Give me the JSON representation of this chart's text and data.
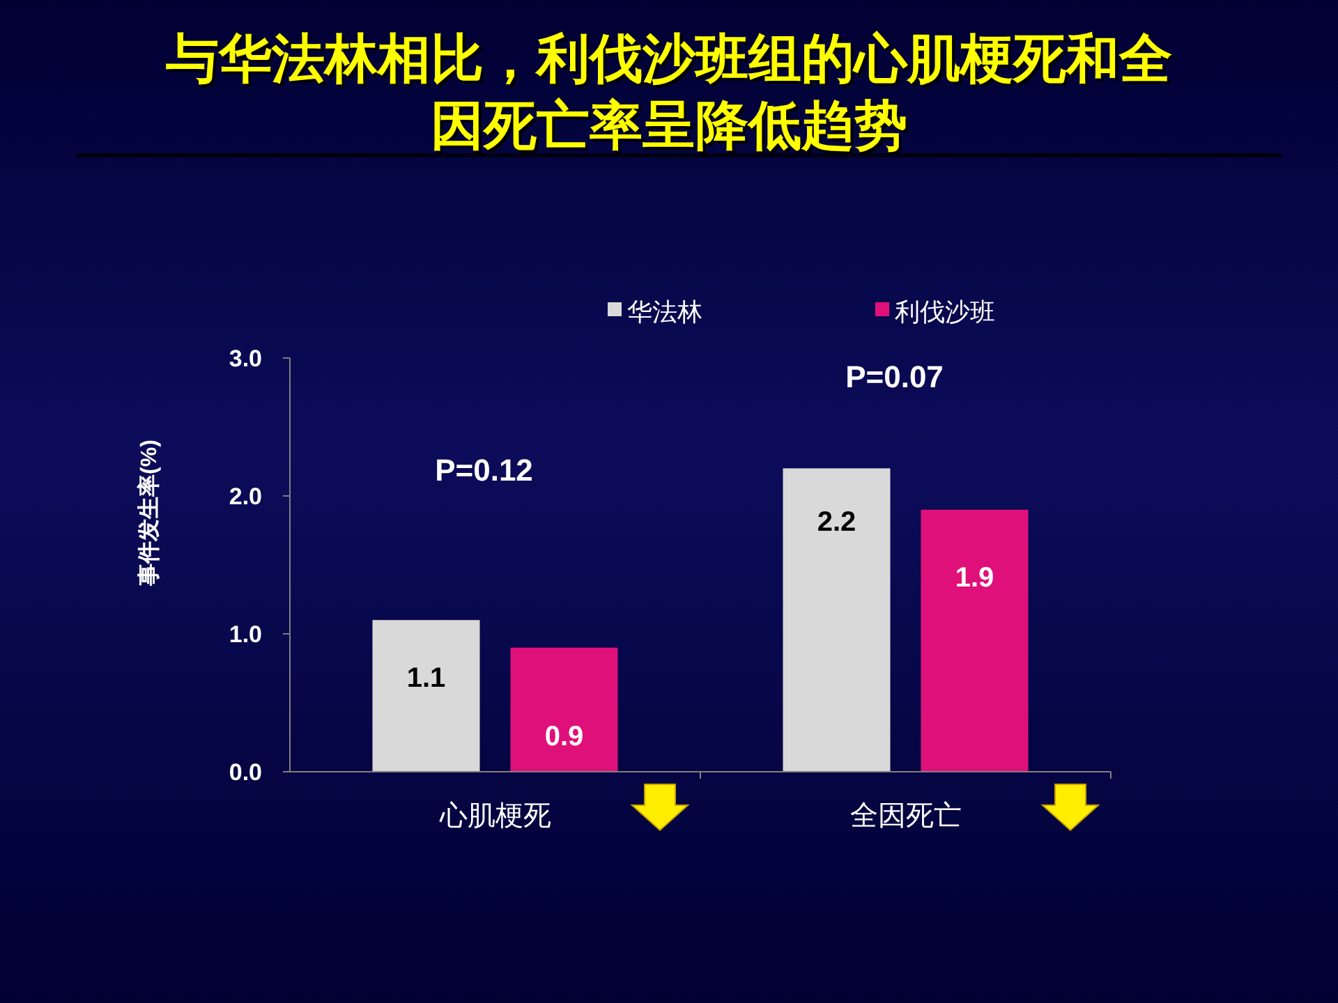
{
  "chart_data": {
    "type": "bar",
    "title": "与华法林相比，利伐沙班组的心肌梗死和全因死亡率呈降低趋势",
    "ylabel": "事件发生率(%)",
    "categories": [
      "心肌梗死",
      "全因死亡"
    ],
    "series": [
      {
        "name": "华法林",
        "color": "#d9d9d9",
        "values": [
          1.1,
          2.2
        ]
      },
      {
        "name": "利伐沙班",
        "color": "#e0107a",
        "values": [
          0.9,
          1.9
        ]
      }
    ],
    "ylim": [
      0,
      3
    ],
    "yticks": [
      {
        "value": 0,
        "label": "0.0"
      },
      {
        "value": 1,
        "label": "1.0"
      },
      {
        "value": 2,
        "label": "2.0"
      },
      {
        "value": 3,
        "label": "3.0"
      }
    ],
    "data_labels": true,
    "legend": "top",
    "annotations": [
      "P=0.12",
      "P=0.07"
    ]
  }
}
